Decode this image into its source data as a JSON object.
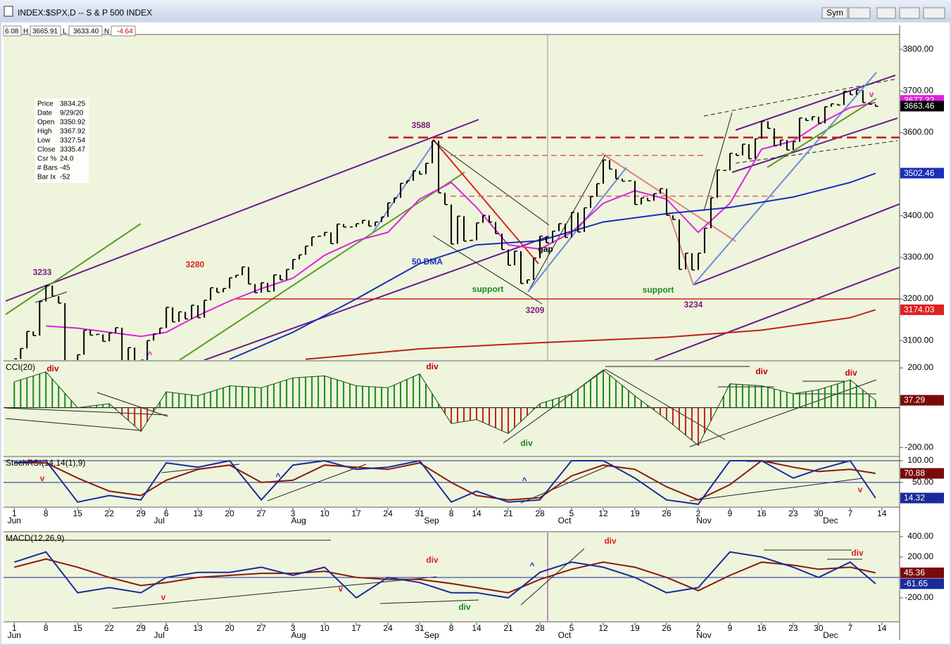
{
  "window": {
    "title": "INDEX:$SPX,D -- S & P 500 INDEX",
    "buttons": [
      "Sym"
    ]
  },
  "quote": {
    "open_partial": "6.08",
    "h_label": "H",
    "high": "3665.91",
    "l_label": "L",
    "low": "3633.40",
    "n_label": "N",
    "net": "-4.64"
  },
  "info": [
    [
      "Price",
      "3834.25"
    ],
    [
      "Date",
      "9/29/20"
    ],
    [
      "Open",
      "3350.92"
    ],
    [
      "High",
      "3367.92"
    ],
    [
      "Low",
      "3327.54"
    ],
    [
      "Close",
      "3335.47"
    ],
    [
      "Csr %",
      "24.0"
    ],
    [
      "# Bars",
      "-45"
    ],
    [
      "Bar Ix",
      "-52"
    ]
  ],
  "chart_data": [
    {
      "type": "price",
      "title": "INDEX:$SPX,D -- S & P 500 INDEX",
      "xlim": [
        -1.7,
        139.8
      ],
      "ylim": [
        3053,
        3834
      ],
      "yticks": [
        {
          "value": 3100,
          "label": "3100.00"
        },
        {
          "value": 3200,
          "label": "3200.00"
        },
        {
          "value": 3300,
          "label": "3300.00"
        },
        {
          "value": 3400,
          "label": "3400.00"
        },
        {
          "value": 3500,
          "label": "3500.00"
        },
        {
          "value": 3600,
          "label": "3600.00"
        },
        {
          "value": 3700,
          "label": "3700.00"
        },
        {
          "value": 3800,
          "label": "3800.00"
        }
      ],
      "series": [
        {
          "color": "#000000",
          "values": [
            3056,
            3081,
            3122,
            3112,
            3194,
            3232,
            3207,
            3190,
            3002,
            3041,
            3066,
            3125,
            3113,
            3115,
            3098,
            3118,
            3131,
            3050,
            3083,
            3009,
            3053,
            3100,
            3116,
            3130,
            3180,
            3145,
            3169,
            3152,
            3185,
            3155,
            3197,
            3227,
            3216,
            3225,
            3251,
            3257,
            3277,
            3236,
            3215,
            3239,
            3218,
            3258,
            3246,
            3271,
            3295,
            3306,
            3327,
            3349,
            3351,
            3360,
            3333,
            3380,
            3373,
            3373,
            3381,
            3389,
            3375,
            3385,
            3397,
            3431,
            3443,
            3478,
            3484,
            3508,
            3500,
            3526,
            3580,
            3455,
            3427,
            3332,
            3399,
            3339,
            3341,
            3383,
            3401,
            3385,
            3357,
            3319,
            3281,
            3315,
            3237,
            3246,
            3298,
            3351,
            3335,
            3363,
            3381,
            3348,
            3408,
            3361,
            3419,
            3446,
            3477,
            3534,
            3512,
            3489,
            3483,
            3484,
            3427,
            3443,
            3436,
            3453,
            3465,
            3401,
            3391,
            3271,
            3310,
            3270,
            3310,
            3370,
            3443,
            3510,
            3509,
            3550,
            3545,
            3572,
            3537,
            3585,
            3627,
            3610,
            3568,
            3582,
            3558,
            3578,
            3635,
            3629,
            3638,
            3622,
            3662,
            3669,
            3666,
            3699,
            3691,
            3702,
            3672,
            3668,
            3663
          ]
        }
      ],
      "overlays": [
        {
          "color": "#e020e0",
          "x": [
            5,
            10,
            15,
            20,
            24,
            29,
            34,
            39,
            44,
            49,
            54,
            59,
            64,
            69,
            73,
            78,
            83,
            88,
            93,
            98,
            103,
            108,
            113,
            118,
            123,
            127,
            132,
            136
          ],
          "values": [
            3135,
            3130,
            3120,
            3110,
            3120,
            3160,
            3195,
            3225,
            3250,
            3305,
            3340,
            3360,
            3440,
            3480,
            3420,
            3330,
            3320,
            3360,
            3430,
            3460,
            3440,
            3360,
            3430,
            3560,
            3580,
            3620,
            3660,
            3672
          ]
        },
        {
          "color": "#1a2fb8",
          "x": [
            34,
            44,
            54,
            64,
            73,
            83,
            93,
            103,
            113,
            123,
            132,
            136
          ],
          "values": [
            3055,
            3120,
            3200,
            3285,
            3330,
            3340,
            3385,
            3405,
            3420,
            3445,
            3480,
            3502
          ]
        },
        {
          "color": "#c0201a",
          "x": [
            46,
            64,
            83,
            103,
            118,
            132,
            136
          ],
          "values": [
            3055,
            3080,
            3095,
            3108,
            3125,
            3155,
            3174
          ]
        }
      ],
      "levels": [
        {
          "value": 3588,
          "style": "dashed"
        },
        {
          "value": 3545,
          "style": "dashed"
        },
        {
          "value": 3447,
          "style": "dashed"
        },
        {
          "value": 3200,
          "style": "solid"
        }
      ],
      "last_labels": [
        {
          "value": 3677.32,
          "color": "#e020e0"
        },
        {
          "value": 3663.46,
          "color": "#000000"
        },
        {
          "value": 3502.46,
          "color": "#1a2fb8"
        },
        {
          "value": 3174.03,
          "color": "#e02020"
        }
      ],
      "annotations": [
        {
          "text": "3233",
          "color": "#7a1a7a"
        },
        {
          "text": "3280",
          "color": "#e02020"
        },
        {
          "text": "3588",
          "color": "#7a1a7a"
        },
        {
          "text": "50 DMA",
          "color": "#1a2fb8"
        },
        {
          "text": "support",
          "color": "#1a8a1a"
        },
        {
          "text": "3209",
          "color": "#7a1a7a"
        },
        {
          "text": "gap",
          "color": "#000000"
        },
        {
          "text": "support",
          "color": "#1a8a1a"
        },
        {
          "text": "3234",
          "color": "#7a1a7a"
        },
        {
          "text": "v",
          "color": "#e020e0"
        },
        {
          "text": "^",
          "color": "#e020e0"
        }
      ]
    },
    {
      "type": "histogram",
      "title": "CCI(20)",
      "xlim": [
        -1.7,
        139.8
      ],
      "ylim": [
        -242,
        232
      ],
      "yticks": [
        {
          "value": 200,
          "label": "200.00"
        },
        {
          "value": -200,
          "label": "-200.00"
        }
      ],
      "pos_color": "#1a8a1a",
      "neg_color": "#c0201a",
      "x": [
        0,
        5,
        10,
        15,
        20,
        24,
        29,
        34,
        39,
        44,
        49,
        54,
        59,
        64,
        69,
        73,
        78,
        83,
        88,
        93,
        98,
        103,
        108,
        113,
        118,
        123,
        127,
        132,
        136
      ],
      "values": [
        130,
        180,
        0,
        20,
        -120,
        80,
        60,
        110,
        100,
        150,
        160,
        110,
        100,
        170,
        -80,
        -60,
        -130,
        20,
        70,
        190,
        60,
        -60,
        -190,
        120,
        110,
        70,
        90,
        140,
        37.29
      ],
      "last_labels": [
        {
          "value": 37.29,
          "color": "#7a0a0a"
        }
      ],
      "annotations": [
        {
          "text": "div",
          "color": "#c00000"
        },
        {
          "text": "div",
          "color": "#c00000"
        },
        {
          "text": "div",
          "color": "#1a8a1a"
        },
        {
          "text": "div",
          "color": "#c00000"
        },
        {
          "text": "div",
          "color": "#c00000"
        }
      ]
    },
    {
      "type": "line",
      "title": "StochRSI(14,14(1),9)",
      "xlim": [
        -1.7,
        139.8
      ],
      "ylim": [
        -5,
        108
      ],
      "grid": true,
      "yticks": [
        {
          "value": 100,
          "label": "100.00"
        },
        {
          "value": 50,
          "label": "50.00"
        }
      ],
      "x": [
        0,
        5,
        10,
        15,
        20,
        24,
        29,
        34,
        39,
        44,
        49,
        54,
        59,
        64,
        69,
        73,
        78,
        83,
        88,
        93,
        98,
        103,
        108,
        113,
        118,
        123,
        127,
        132,
        136
      ],
      "series": [
        {
          "color": "#1a2a9a",
          "values": [
            95,
            100,
            5,
            20,
            10,
            95,
            85,
            100,
            10,
            90,
            100,
            80,
            85,
            100,
            5,
            30,
            5,
            10,
            100,
            100,
            60,
            10,
            0,
            100,
            100,
            60,
            80,
            100,
            14.32
          ]
        },
        {
          "color": "#8a1a0a",
          "values": [
            95,
            95,
            60,
            30,
            20,
            55,
            80,
            90,
            50,
            55,
            90,
            85,
            80,
            95,
            50,
            20,
            10,
            15,
            65,
            90,
            80,
            40,
            10,
            45,
            100,
            85,
            75,
            80,
            70.88
          ]
        }
      ],
      "last_labels": [
        {
          "value": 70.88,
          "color": "#7a0a0a"
        },
        {
          "value": 14.32,
          "color": "#1a2a9a"
        }
      ],
      "xticks": [
        {
          "value": 0,
          "label": "1"
        },
        {
          "value": 5,
          "label": "8"
        },
        {
          "value": 10,
          "label": "15"
        },
        {
          "value": 15,
          "label": "22"
        },
        {
          "value": 20,
          "label": "29"
        },
        {
          "value": 24,
          "label": "6"
        },
        {
          "value": 29,
          "label": "13"
        },
        {
          "value": 34,
          "label": "20"
        },
        {
          "value": 39,
          "label": "27"
        },
        {
          "value": 44,
          "label": "3"
        },
        {
          "value": 49,
          "label": "10"
        },
        {
          "value": 54,
          "label": "17"
        },
        {
          "value": 59,
          "label": "24"
        },
        {
          "value": 64,
          "label": "31"
        },
        {
          "value": 69,
          "label": "8"
        },
        {
          "value": 73,
          "label": "14"
        },
        {
          "value": 78,
          "label": "21"
        },
        {
          "value": 83,
          "label": "28"
        },
        {
          "value": 88,
          "label": "5"
        },
        {
          "value": 93,
          "label": "12"
        },
        {
          "value": 98,
          "label": "19"
        },
        {
          "value": 103,
          "label": "26"
        },
        {
          "value": 108,
          "label": "2"
        },
        {
          "value": 113,
          "label": "9"
        },
        {
          "value": 118,
          "label": "16"
        },
        {
          "value": 123,
          "label": "23"
        },
        {
          "value": 127,
          "label": "30"
        },
        {
          "value": 132,
          "label": "7"
        },
        {
          "value": 137,
          "label": "14"
        }
      ],
      "months": [
        {
          "value": 0,
          "label": "Jun"
        },
        {
          "value": 22,
          "label": "Jul"
        },
        {
          "value": 44,
          "label": "Aug"
        },
        {
          "value": 65,
          "label": "Sep"
        },
        {
          "value": 86,
          "label": "Oct"
        },
        {
          "value": 108,
          "label": "Nov"
        },
        {
          "value": 128,
          "label": "Dec"
        }
      ],
      "annotations": [
        {
          "text": "v",
          "color": "#e02020"
        },
        {
          "text": "^",
          "color": "#1a2fb8"
        },
        {
          "text": "^",
          "color": "#1a2fb8"
        },
        {
          "text": "v",
          "color": "#e02020"
        }
      ]
    },
    {
      "type": "line",
      "title": "MACD(12,26,9)",
      "xlim": [
        -1.7,
        139.8
      ],
      "ylim": [
        -428,
        441
      ],
      "yticks": [
        {
          "value": 400,
          "label": "400.00"
        },
        {
          "value": 200,
          "label": "200.00"
        },
        {
          "value": -200,
          "label": "-200.00"
        }
      ],
      "zero_line": true,
      "x": [
        0,
        5,
        10,
        15,
        20,
        24,
        29,
        34,
        39,
        44,
        49,
        54,
        59,
        64,
        69,
        73,
        78,
        83,
        88,
        93,
        98,
        103,
        108,
        113,
        118,
        123,
        127,
        132,
        136
      ],
      "series": [
        {
          "color": "#1a2a9a",
          "values": [
            150,
            250,
            -150,
            -100,
            -150,
            0,
            50,
            50,
            100,
            20,
            100,
            -200,
            0,
            -50,
            -150,
            -150,
            -200,
            50,
            150,
            100,
            0,
            -150,
            -100,
            250,
            200,
            100,
            0,
            150,
            -61.65
          ]
        },
        {
          "color": "#8a1a0a",
          "values": [
            100,
            180,
            100,
            0,
            -80,
            -50,
            0,
            20,
            40,
            40,
            60,
            0,
            -20,
            -20,
            -60,
            -100,
            -150,
            -20,
            80,
            150,
            100,
            0,
            -130,
            20,
            150,
            120,
            80,
            100,
            45.36
          ]
        }
      ],
      "last_labels": [
        {
          "value": 45.36,
          "color": "#7a0a0a"
        },
        {
          "value": -61.65,
          "color": "#1a2a9a"
        }
      ],
      "xticks": [
        {
          "value": 0,
          "label": "1"
        },
        {
          "value": 5,
          "label": "8"
        },
        {
          "value": 10,
          "label": "15"
        },
        {
          "value": 15,
          "label": "22"
        },
        {
          "value": 20,
          "label": "29"
        },
        {
          "value": 24,
          "label": "6"
        },
        {
          "value": 29,
          "label": "13"
        },
        {
          "value": 34,
          "label": "20"
        },
        {
          "value": 39,
          "label": "27"
        },
        {
          "value": 44,
          "label": "3"
        },
        {
          "value": 49,
          "label": "10"
        },
        {
          "value": 54,
          "label": "17"
        },
        {
          "value": 59,
          "label": "24"
        },
        {
          "value": 64,
          "label": "31"
        },
        {
          "value": 69,
          "label": "8"
        },
        {
          "value": 73,
          "label": "14"
        },
        {
          "value": 78,
          "label": "21"
        },
        {
          "value": 83,
          "label": "28"
        },
        {
          "value": 88,
          "label": "5"
        },
        {
          "value": 93,
          "label": "12"
        },
        {
          "value": 98,
          "label": "19"
        },
        {
          "value": 103,
          "label": "26"
        },
        {
          "value": 108,
          "label": "2"
        },
        {
          "value": 113,
          "label": "9"
        },
        {
          "value": 118,
          "label": "16"
        },
        {
          "value": 123,
          "label": "23"
        },
        {
          "value": 127,
          "label": "30"
        },
        {
          "value": 132,
          "label": "7"
        },
        {
          "value": 137,
          "label": "14"
        }
      ],
      "months": [
        {
          "value": 0,
          "label": "Jun"
        },
        {
          "value": 22,
          "label": "Jul"
        },
        {
          "value": 44,
          "label": "Aug"
        },
        {
          "value": 65,
          "label": "Sep"
        },
        {
          "value": 86,
          "label": "Oct"
        },
        {
          "value": 108,
          "label": "Nov"
        },
        {
          "value": 128,
          "label": "Dec"
        }
      ],
      "annotations": [
        {
          "text": "div",
          "color": "#e02020"
        },
        {
          "text": "v",
          "color": "#e02020"
        },
        {
          "text": "v",
          "color": "#e02020"
        },
        {
          "text": "div",
          "color": "#1a8a1a"
        },
        {
          "text": "^",
          "color": "#1a2fb8"
        },
        {
          "text": "div",
          "color": "#e02020"
        },
        {
          "text": "div",
          "color": "#e02020"
        }
      ]
    }
  ]
}
